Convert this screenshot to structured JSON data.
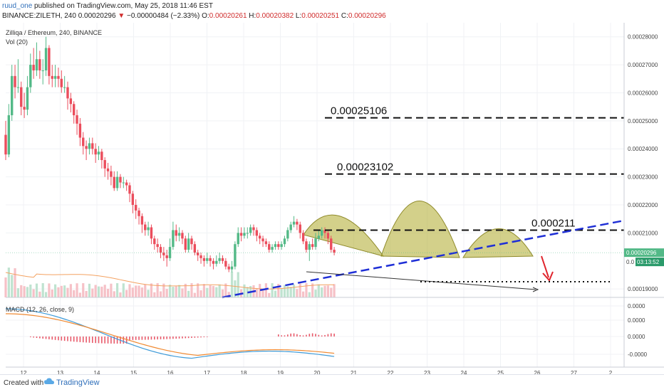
{
  "header": {
    "user": "ruud_one",
    "published": "published on TradingView.com, May 25, 2018 11:46 EST",
    "symbol": "BINANCE:ZILETH, 240",
    "last": "0.00020296",
    "arrow": "▼",
    "change": "−0.00000484 (−2.33%)",
    "o_label": "O:",
    "o_val": "0.00020261",
    "h_label": "H:",
    "h_val": "0.00020382",
    "l_label": "L:",
    "l_val": "0.00020251",
    "c_label": "C:",
    "c_val": "0.00020296"
  },
  "legend": {
    "title": "Zilliqa / Ethereum, 240, BINANCE",
    "vol": "Vol (20)",
    "macd": "MACD (12, 26, close, 9)"
  },
  "annotations": {
    "level1": "0.00025106",
    "level2": "0.00023102",
    "level3": "0.000211"
  },
  "price_tags": {
    "last": "0.00020296",
    "timer": "03:13:52",
    "tag_prefix": "0.0"
  },
  "footer": {
    "created": "Created with",
    "brand": "TradingView"
  },
  "colors": {
    "up": "#53b987",
    "down": "#eb4d5c",
    "vol_up": "#bfe3d0",
    "vol_down": "#f6c1c7",
    "ma": "#f4a261",
    "macd_line": "#3f9bd8",
    "signal_line": "#f08a32",
    "pattern_fill": "#b5b03c",
    "trend": "#1f2fd6",
    "target_arrow": "#e0242c",
    "last_tag": "#53b987",
    "timer_tag": "#2a9a6a"
  },
  "chart_data": {
    "type": "candlestick",
    "y_axis": {
      "range": [
        0.000187,
        0.000285
      ],
      "ticks": [
        "0.00028000",
        "0.00027000",
        "0.00026000",
        "0.00025000",
        "0.00024000",
        "0.00023000",
        "0.00022000",
        "0.00021000",
        "0.00019000"
      ]
    },
    "macd_axis": {
      "range": [
        -1.5e-05,
        1.5e-05
      ],
      "ticks": [
        "0.0000",
        "0.0000",
        "0.0000",
        "-0.0000"
      ]
    },
    "x_axis": {
      "ticks": [
        "12",
        "13",
        "14",
        "15",
        "16",
        "17",
        "18",
        "19",
        "20",
        "21",
        "22",
        "23",
        "24",
        "25",
        "26",
        "27",
        "2"
      ]
    },
    "candles": [
      [
        0.000245,
        0.000238,
        0.00025,
        0.000236
      ],
      [
        0.000238,
        0.000252,
        0.000256,
        0.000237
      ],
      [
        0.000252,
        0.000266,
        0.00027,
        0.00025
      ],
      [
        0.000266,
        0.000262,
        0.00027,
        0.000258
      ],
      [
        0.000262,
        0.000262,
        0.000272,
        0.00026
      ],
      [
        0.000262,
        0.000255,
        0.000264,
        0.000252
      ],
      [
        0.000255,
        0.000254,
        0.00026,
        0.000251
      ],
      [
        0.000254,
        0.000262,
        0.000266,
        0.000252
      ],
      [
        0.000262,
        0.00027,
        0.000274,
        0.00026
      ],
      [
        0.00027,
        0.000268,
        0.000276,
        0.000265
      ],
      [
        0.000268,
        0.000272,
        0.000278,
        0.000266
      ],
      [
        0.000272,
        0.000268,
        0.000275,
        0.000265
      ],
      [
        0.000268,
        0.000268,
        0.000272,
        0.000263
      ],
      [
        0.000268,
        0.000276,
        0.00028,
        0.000266
      ],
      [
        0.000276,
        0.000266,
        0.000277,
        0.000263
      ],
      [
        0.000266,
        0.000265,
        0.00027,
        0.000262
      ],
      [
        0.000265,
        0.000266,
        0.00027,
        0.000262
      ],
      [
        0.000266,
        0.000265,
        0.000269,
        0.000262
      ],
      [
        0.000265,
        0.000262,
        0.000268,
        0.00026
      ],
      [
        0.000262,
        0.000262,
        0.000266,
        0.00026
      ],
      [
        0.000262,
        0.000258,
        0.000264,
        0.000254
      ],
      [
        0.000258,
        0.000256,
        0.00026,
        0.000253
      ],
      [
        0.000256,
        0.000252,
        0.000257,
        0.000249
      ],
      [
        0.000252,
        0.000249,
        0.000254,
        0.000245
      ],
      [
        0.000249,
        0.000244,
        0.000251,
        0.000241
      ],
      [
        0.000244,
        0.000241,
        0.000246,
        0.000238
      ],
      [
        0.000241,
        0.00024,
        0.000243,
        0.000236
      ],
      [
        0.00024,
        0.000242,
        0.000244,
        0.000238
      ],
      [
        0.000242,
        0.00024,
        0.000244,
        0.000238
      ],
      [
        0.00024,
        0.000238,
        0.000242,
        0.000235
      ],
      [
        0.000238,
        0.000239,
        0.000241,
        0.000236
      ],
      [
        0.000239,
        0.000236,
        0.00024,
        0.000233
      ],
      [
        0.000236,
        0.000233,
        0.000237,
        0.00023
      ],
      [
        0.000233,
        0.000232,
        0.000235,
        0.000229
      ],
      [
        0.000232,
        0.00023,
        0.000234,
        0.000227
      ],
      [
        0.00023,
        0.000226,
        0.000232,
        0.000225
      ],
      [
        0.000226,
        0.00023,
        0.000232,
        0.000225
      ],
      [
        0.00023,
        0.000228,
        0.000231,
        0.000226
      ],
      [
        0.000228,
        0.000228,
        0.00023,
        0.000226
      ],
      [
        0.000228,
        0.000227,
        0.000229,
        0.000225
      ],
      [
        0.000227,
        0.000224,
        0.000228,
        0.000221
      ],
      [
        0.000224,
        0.00022,
        0.000225,
        0.000217
      ],
      [
        0.00022,
        0.000218,
        0.000222,
        0.000215
      ],
      [
        0.000218,
        0.000216,
        0.000219,
        0.000213
      ],
      [
        0.000216,
        0.000213,
        0.000217,
        0.00021
      ],
      [
        0.000213,
        0.000211,
        0.000214,
        0.000209
      ],
      [
        0.000211,
        0.000212,
        0.000214,
        0.000209
      ],
      [
        0.000212,
        0.000208,
        0.000213,
        0.000206
      ],
      [
        0.000208,
        0.000206,
        0.000209,
        0.000204
      ],
      [
        0.000206,
        0.000205,
        0.000208,
        0.000203
      ],
      [
        0.000205,
        0.000203,
        0.000206,
        0.000201
      ],
      [
        0.000203,
        0.000202,
        0.000205,
        0.0002
      ],
      [
        0.000202,
        0.000201,
        0.000204,
        0.000198
      ],
      [
        0.000201,
        0.000205,
        0.000208,
        0.0002
      ],
      [
        0.000205,
        0.000211,
        0.000214,
        0.000204
      ],
      [
        0.000211,
        0.000209,
        0.000213,
        0.000207
      ],
      [
        0.000209,
        0.00021,
        0.000212,
        0.000207
      ],
      [
        0.00021,
        0.000208,
        0.000211,
        0.000206
      ],
      [
        0.000208,
        0.000204,
        0.000209,
        0.000203
      ],
      [
        0.000204,
        0.000208,
        0.00021,
        0.000203
      ],
      [
        0.000208,
        0.000206,
        0.000209,
        0.000204
      ],
      [
        0.000206,
        0.000203,
        0.000207,
        0.000202
      ],
      [
        0.000203,
        0.000202,
        0.000204,
        0.0002
      ],
      [
        0.000202,
        0.000201,
        0.000203,
        0.000199
      ],
      [
        0.000201,
        0.0002,
        0.000202,
        0.000198
      ],
      [
        0.0002,
        0.000201,
        0.000203,
        0.000199
      ],
      [
        0.000201,
        0.0002,
        0.000202,
        0.000198
      ],
      [
        0.0002,
        0.000199,
        0.000201,
        0.000197
      ],
      [
        0.000199,
        0.0002,
        0.000202,
        0.000198
      ],
      [
        0.0002,
        0.000201,
        0.000203,
        0.000199
      ],
      [
        0.000201,
        0.0002,
        0.000202,
        0.000199
      ],
      [
        0.0002,
        0.000198,
        0.000201,
        0.000197
      ],
      [
        0.000198,
        0.000197,
        0.000199,
        0.000196
      ],
      [
        0.000197,
        0.000198,
        0.0002,
        0.000196
      ],
      [
        0.000198,
        0.000206,
        0.000207,
        0.000197
      ],
      [
        0.000206,
        0.00021,
        0.000212,
        0.000205
      ],
      [
        0.00021,
        0.000209,
        0.000212,
        0.000207
      ],
      [
        0.000209,
        0.00021,
        0.000212,
        0.000208
      ],
      [
        0.00021,
        0.00021,
        0.000212,
        0.000208
      ],
      [
        0.00021,
        0.000212,
        0.000213,
        0.000209
      ],
      [
        0.000212,
        0.000211,
        0.000213,
        0.000209
      ],
      [
        0.000211,
        0.000209,
        0.000212,
        0.000207
      ],
      [
        0.000209,
        0.000208,
        0.00021,
        0.000206
      ],
      [
        0.000208,
        0.000207,
        0.000209,
        0.000205
      ],
      [
        0.000207,
        0.000206,
        0.000208,
        0.000205
      ],
      [
        0.000206,
        0.000204,
        0.000207,
        0.000203
      ],
      [
        0.000204,
        0.000205,
        0.000206,
        0.000203
      ],
      [
        0.000205,
        0.000206,
        0.000207,
        0.000204
      ],
      [
        0.000206,
        0.000205,
        0.000207,
        0.000204
      ],
      [
        0.000205,
        0.000206,
        0.000207,
        0.000204
      ],
      [
        0.000206,
        0.000208,
        0.000209,
        0.000205
      ],
      [
        0.000208,
        0.000211,
        0.000212,
        0.000207
      ],
      [
        0.000211,
        0.000213,
        0.000214,
        0.00021
      ],
      [
        0.000213,
        0.000214,
        0.000216,
        0.000212
      ],
      [
        0.000214,
        0.000213,
        0.000215,
        0.000211
      ],
      [
        0.000213,
        0.00021,
        0.000214,
        0.000208
      ],
      [
        0.00021,
        0.000207,
        0.000211,
        0.000206
      ],
      [
        0.000207,
        0.000204,
        0.000208,
        0.000203
      ],
      [
        0.000204,
        0.000206,
        0.000207,
        0.0002
      ],
      [
        0.000206,
        0.000205,
        0.000208,
        0.000204
      ],
      [
        0.000205,
        0.000208,
        0.00021,
        0.000204
      ],
      [
        0.000208,
        0.000209,
        0.000211,
        0.000207
      ],
      [
        0.000209,
        0.000211,
        0.000212,
        0.000208
      ],
      [
        0.000211,
        0.00021,
        0.000212,
        0.000208
      ],
      [
        0.00021,
        0.000208,
        0.000211,
        0.000206
      ],
      [
        0.000208,
        0.000204,
        0.000209,
        0.000203
      ],
      [
        0.000204,
        0.000203,
        0.000205,
        0.000202
      ]
    ]
  }
}
